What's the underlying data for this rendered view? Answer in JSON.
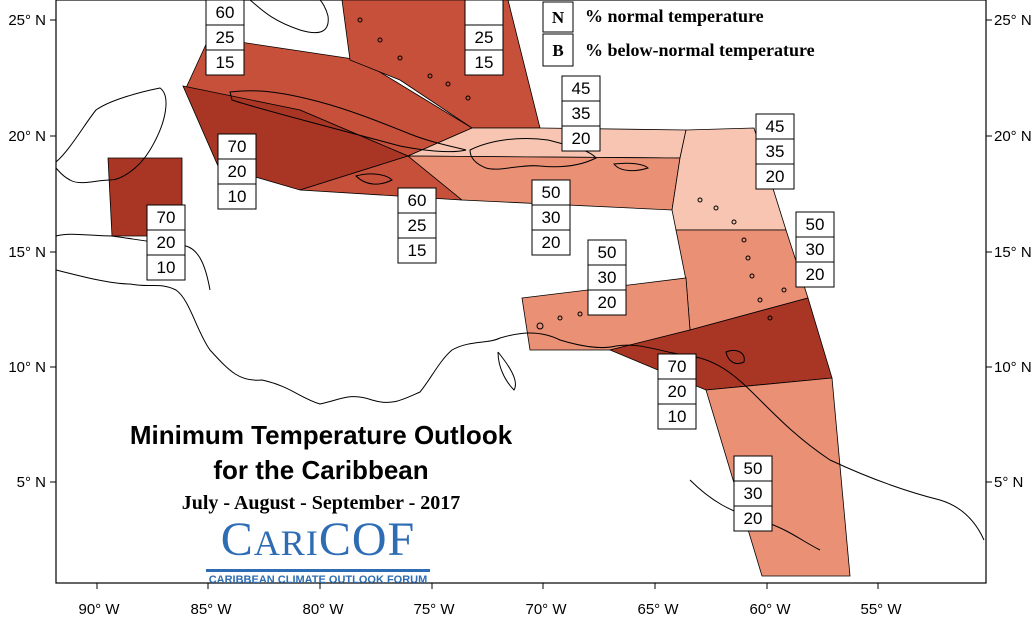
{
  "map": {
    "title_line1": "Minimum Temperature Outlook",
    "title_line2": "for the Caribbean",
    "season": "July - August - September - 2017",
    "logo": {
      "name": "CariCOF",
      "tagline": "CARIBBEAN CLIMATE OUTLOOK FORUM"
    },
    "legend": [
      {
        "key": "N",
        "text": "% normal temperature"
      },
      {
        "key": "B",
        "text": "% below-normal temperature"
      }
    ],
    "lat_labels": [
      "25° N",
      "20° N",
      "15° N",
      "10° N",
      "5° N"
    ],
    "lon_labels": [
      "90° W",
      "85° W",
      "80° W",
      "75° W",
      "70° W",
      "65° W",
      "60° W",
      "55° W"
    ],
    "colors": {
      "above_70": "#a93624",
      "above_60": "#c7503a",
      "above_50": "#e99075",
      "above_45": "#f7c5b2",
      "outline": "#000000"
    },
    "regions": [
      {
        "id": "belize",
        "fill": "above_70",
        "probabilities": [
          "70",
          "20",
          "10"
        ]
      },
      {
        "id": "cuba-west",
        "fill": "above_70",
        "probabilities": [
          "70",
          "20",
          "10"
        ]
      },
      {
        "id": "cuba-east-jamaica",
        "fill": "above_60",
        "probabilities": [
          "60",
          "25",
          "15"
        ]
      },
      {
        "id": "bahamas-north",
        "fill": "above_60",
        "probabilities": [
          "60",
          "25",
          "15"
        ]
      },
      {
        "id": "bahamas-east",
        "fill": "above_60",
        "probabilities": [
          "",
          "25",
          "15"
        ]
      },
      {
        "id": "hispaniola-north",
        "fill": "above_45",
        "probabilities": [
          "45",
          "35",
          "20"
        ]
      },
      {
        "id": "hispaniola-south",
        "fill": "above_50",
        "probabilities": [
          "50",
          "30",
          "20"
        ]
      },
      {
        "id": "leeward-islands",
        "fill": "above_45",
        "probabilities": [
          "45",
          "35",
          "20"
        ]
      },
      {
        "id": "windward-islands",
        "fill": "above_50",
        "probabilities": [
          "50",
          "30",
          "20"
        ]
      },
      {
        "id": "abc-islands",
        "fill": "above_50",
        "probabilities": [
          "50",
          "30",
          "20"
        ]
      },
      {
        "id": "trinidad-tobago",
        "fill": "above_70",
        "probabilities": [
          "70",
          "20",
          "10"
        ]
      },
      {
        "id": "guianas",
        "fill": "above_50",
        "probabilities": [
          "50",
          "30",
          "20"
        ]
      }
    ]
  }
}
